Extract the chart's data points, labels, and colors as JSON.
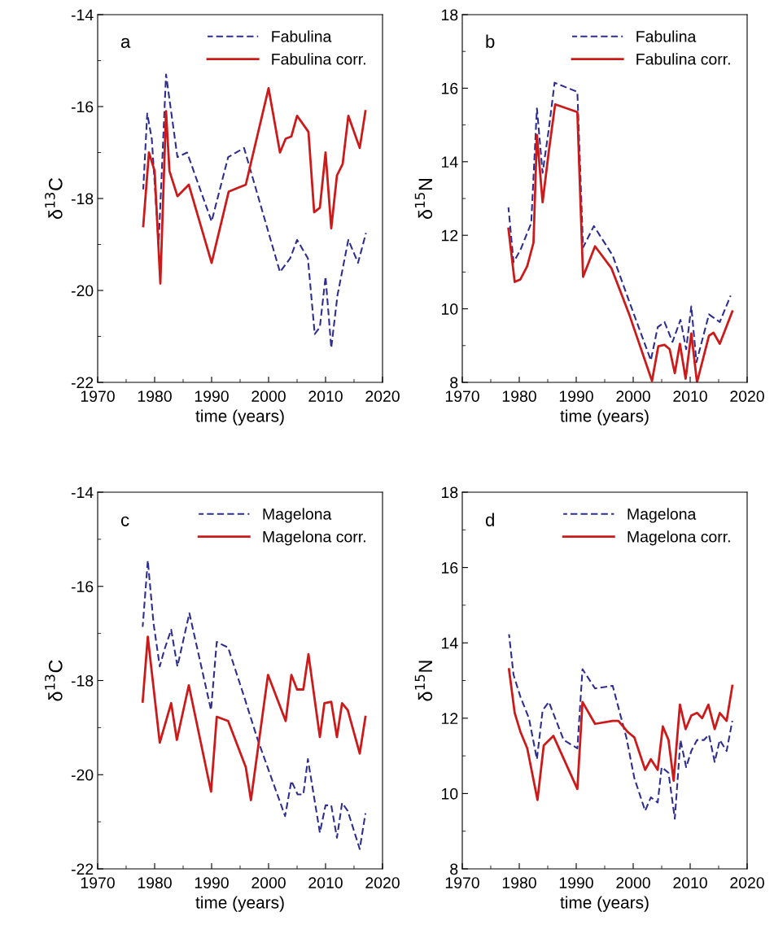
{
  "chart_data": [
    {
      "type": "line",
      "xlabel": "time (years)",
      "ylabel": "δ$^{13}$C",
      "annotations": [
        "a"
      ],
      "xlim": [
        1970,
        2020
      ],
      "xticks": [
        1970,
        1980,
        1990,
        2000,
        2010,
        2020
      ],
      "ylim": [
        -22,
        -14
      ],
      "yticks": [
        -22,
        -20,
        -18,
        -16,
        -14
      ],
      "legend": "top right",
      "grid": false,
      "series": [
        {
          "name": "Fabulina",
          "color": "#2e2e8f",
          "line_style": "dashed",
          "x": [
            1978,
            1978.7,
            1979.5,
            1980.7,
            1982,
            1984,
            1985.7,
            1990,
            1992.9,
            1995.7,
            2002,
            2003.8,
            2005,
            2006.9,
            2008.1,
            2009,
            2010,
            2011,
            2012.1,
            2014,
            2015.7,
            2017.1
          ],
          "values": [
            -17.8,
            -16.15,
            -16.7,
            -19.0,
            -15.3,
            -17.1,
            -17.0,
            -18.5,
            -17.1,
            -16.9,
            -19.6,
            -19.3,
            -18.9,
            -19.3,
            -20.95,
            -20.8,
            -19.7,
            -21.25,
            -20.1,
            -18.9,
            -19.4,
            -18.75
          ]
        },
        {
          "name": "Fabulina corr.",
          "color": "#cc1a1a",
          "line_style": "solid",
          "x": [
            1978,
            1979,
            1980,
            1981,
            1982,
            1982.6,
            1984,
            1986,
            1990,
            1993,
            1996,
            2000,
            2002,
            2003,
            2004,
            2005,
            2007,
            2008,
            2009,
            2010,
            2011,
            2012,
            2013,
            2014,
            2016,
            2017
          ],
          "values": [
            -18.6,
            -17.0,
            -17.4,
            -19.85,
            -16.1,
            -17.4,
            -17.95,
            -17.7,
            -19.4,
            -17.85,
            -17.7,
            -15.6,
            -17.0,
            -16.7,
            -16.65,
            -16.2,
            -16.55,
            -18.3,
            -18.2,
            -17.0,
            -18.65,
            -17.5,
            -17.25,
            -16.2,
            -16.9,
            -16.1
          ]
        }
      ]
    },
    {
      "type": "line",
      "xlabel": "time (years)",
      "ylabel": "δ$^{15}$N",
      "annotations": [
        "b"
      ],
      "xlim": [
        1970,
        2020
      ],
      "xticks": [
        1970,
        1980,
        1990,
        2000,
        2010,
        2020
      ],
      "ylim": [
        8,
        18
      ],
      "yticks": [
        8,
        10,
        12,
        14,
        16,
        18
      ],
      "legend": "top right",
      "grid": false,
      "series": [
        {
          "name": "Fabulina",
          "color": "#2e2e8f",
          "line_style": "dashed",
          "x": [
            1978.1,
            1979,
            1980.2,
            1982.1,
            1983.1,
            1984.1,
            1985.2,
            1986.2,
            1990.2,
            1991.2,
            1993.1,
            1996.4,
            1999.3,
            2003.1,
            2004.3,
            2005.5,
            2006.9,
            2008.3,
            2009.3,
            2010.2,
            2011.1,
            2013.3,
            2015.2,
            2017.1
          ],
          "values": [
            12.76,
            11.27,
            11.6,
            12.33,
            15.45,
            13.7,
            14.9,
            16.15,
            15.9,
            11.67,
            12.25,
            11.45,
            10.2,
            8.6,
            9.5,
            9.64,
            9.1,
            9.7,
            8.9,
            10.07,
            8.55,
            9.85,
            9.64,
            10.36
          ]
        },
        {
          "name": "Fabulina corr.",
          "color": "#cc1a1a",
          "line_style": "solid",
          "x": [
            1978.1,
            1979.2,
            1980.2,
            1981.4,
            1982.5,
            1983.1,
            1984.1,
            1985.2,
            1986.3,
            1990.2,
            1991.2,
            1993.3,
            1996.2,
            1999.3,
            2003.3,
            2004.4,
            2005.5,
            2006.4,
            2007.3,
            2008.2,
            2009.2,
            2010.2,
            2011.2,
            2013.3,
            2014.1,
            2015.2,
            2017.4
          ],
          "values": [
            12.18,
            10.73,
            10.8,
            11.16,
            11.8,
            14.73,
            12.9,
            14.3,
            15.56,
            15.35,
            10.87,
            11.7,
            11.1,
            9.85,
            8.04,
            8.98,
            9.02,
            8.9,
            8.25,
            9.05,
            8.1,
            9.33,
            8.0,
            9.27,
            9.35,
            9.05,
            9.93
          ]
        }
      ]
    },
    {
      "type": "line",
      "xlabel": "time (years)",
      "ylabel": "δ$^{13}$C",
      "annotations": [
        "c"
      ],
      "xlim": [
        1970,
        2020
      ],
      "xticks": [
        1970,
        1980,
        1990,
        2000,
        2010,
        2020
      ],
      "ylim": [
        -22,
        -14
      ],
      "yticks": [
        -22,
        -20,
        -18,
        -16,
        -14
      ],
      "legend": "top right",
      "grid": false,
      "series": [
        {
          "name": "Magelona",
          "color": "#2e2e8f",
          "line_style": "dashed",
          "x": [
            1977.9,
            1978.8,
            1979.8,
            1980.9,
            1981.7,
            1982.9,
            1984,
            1986.1,
            1989.9,
            1990.9,
            1992.9,
            1995.7,
            1998.1,
            2000.5,
            2002.9,
            2004,
            2005.1,
            2006.1,
            2006.9,
            2009,
            2010,
            2011,
            2012,
            2012.9,
            2013.9,
            2016,
            2017
          ],
          "values": [
            -16.86,
            -15.45,
            -16.78,
            -17.7,
            -17.35,
            -16.92,
            -17.7,
            -16.57,
            -18.63,
            -17.18,
            -17.3,
            -18.34,
            -19.26,
            -20.07,
            -20.88,
            -20.13,
            -20.42,
            -20.42,
            -19.67,
            -21.23,
            -20.65,
            -20.65,
            -21.34,
            -20.6,
            -20.77,
            -21.58,
            -20.82
          ]
        },
        {
          "name": "Magelona corr.",
          "color": "#cc1a1a",
          "line_style": "solid",
          "x": [
            1977.9,
            1978.8,
            1980.9,
            1982.9,
            1983.9,
            1986,
            1989.9,
            1990.9,
            1992.9,
            1996,
            1996.9,
            1999.9,
            2003,
            2004,
            2005,
            2006.1,
            2007,
            2009,
            2009.8,
            2011,
            2012,
            2012.9,
            2013.9,
            2016,
            2017
          ],
          "values": [
            -18.45,
            -17.07,
            -19.32,
            -18.48,
            -19.26,
            -18.1,
            -20.36,
            -18.77,
            -18.86,
            -19.84,
            -20.54,
            -17.88,
            -18.86,
            -17.88,
            -18.19,
            -18.19,
            -17.44,
            -19.2,
            -18.48,
            -18.45,
            -19.2,
            -18.48,
            -18.63,
            -19.55,
            -18.77
          ]
        }
      ]
    },
    {
      "type": "line",
      "xlabel": "time (years)",
      "ylabel": "δ$^{15}$N",
      "annotations": [
        "d"
      ],
      "xlim": [
        1970,
        2020
      ],
      "xticks": [
        1970,
        1980,
        1990,
        2000,
        2010,
        2020
      ],
      "ylim": [
        8,
        18
      ],
      "yticks": [
        8,
        10,
        12,
        14,
        16,
        18
      ],
      "legend": "top right",
      "grid": false,
      "series": [
        {
          "name": "Magelona",
          "color": "#2e2e8f",
          "line_style": "dashed",
          "x": [
            1978.2,
            1979,
            1980.2,
            1981.7,
            1983.1,
            1984.1,
            1985.2,
            1987.8,
            1990.2,
            1991.1,
            1993.3,
            1996.4,
            1997.9,
            1998.8,
            2000.2,
            2002.1,
            2003.1,
            2004.3,
            2005,
            2006.2,
            2007.3,
            2008.3,
            2009.3,
            2010.2,
            2011.2,
            2012.4,
            2013.3,
            2014.3,
            2015.2,
            2016.4,
            2017.4
          ],
          "values": [
            14.23,
            13.15,
            12.57,
            12.0,
            10.91,
            12.21,
            12.43,
            11.42,
            11.2,
            13.3,
            12.79,
            12.86,
            12.0,
            11.49,
            10.41,
            9.54,
            9.9,
            9.76,
            10.7,
            10.55,
            9.33,
            11.42,
            10.7,
            11.13,
            11.42,
            11.42,
            11.56,
            10.84,
            11.42,
            11.13,
            11.93
          ]
        },
        {
          "name": "Magelona corr.",
          "color": "#cc1a1a",
          "line_style": "solid",
          "x": [
            1978.2,
            1979.2,
            1980.2,
            1981.4,
            1983.2,
            1984.3,
            1986,
            1990.2,
            1991.1,
            1993.3,
            1996.4,
            1997.4,
            1999,
            2000.2,
            2002.1,
            2003.1,
            2004.3,
            2005.2,
            2006.2,
            2007.1,
            2008.2,
            2009.2,
            2010.2,
            2011.2,
            2012.1,
            2013.2,
            2014.3,
            2015.2,
            2016.4,
            2017.4
          ],
          "values": [
            13.3,
            12.14,
            11.64,
            11.2,
            9.83,
            11.28,
            11.53,
            10.12,
            12.43,
            11.85,
            11.93,
            11.93,
            11.64,
            11.49,
            10.63,
            10.91,
            10.63,
            11.78,
            11.42,
            10.34,
            12.36,
            11.71,
            12.07,
            12.14,
            12.0,
            12.36,
            11.71,
            12.14,
            11.93,
            12.86
          ]
        }
      ]
    }
  ]
}
